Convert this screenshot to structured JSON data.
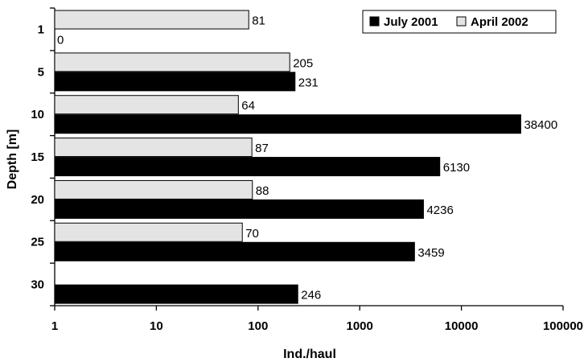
{
  "chart_data": {
    "type": "bar",
    "orientation": "horizontal",
    "x_scale": "log",
    "categories": [
      "1",
      "5",
      "10",
      "15",
      "20",
      "25",
      "30"
    ],
    "series": [
      {
        "name": "July 2001",
        "color": "#000000",
        "values": [
          0,
          231,
          38400,
          6130,
          4236,
          3459,
          246
        ],
        "labels": [
          "0",
          "231",
          "38400",
          "6130",
          "4236",
          "3459",
          "246"
        ]
      },
      {
        "name": "April 2002",
        "color": "#e4e4e4",
        "values": [
          81,
          205,
          64,
          87,
          88,
          70,
          null
        ],
        "labels": [
          "81",
          "205",
          "64",
          "87",
          "88",
          "70",
          ""
        ]
      }
    ],
    "xlabel": "Ind./haul",
    "ylabel": "Depth [m]",
    "xlim": [
      1,
      100000
    ],
    "x_ticks": [
      "1",
      "10",
      "100",
      "1000",
      "10000",
      "100000"
    ],
    "grid": false,
    "legend_position": "top-right"
  }
}
